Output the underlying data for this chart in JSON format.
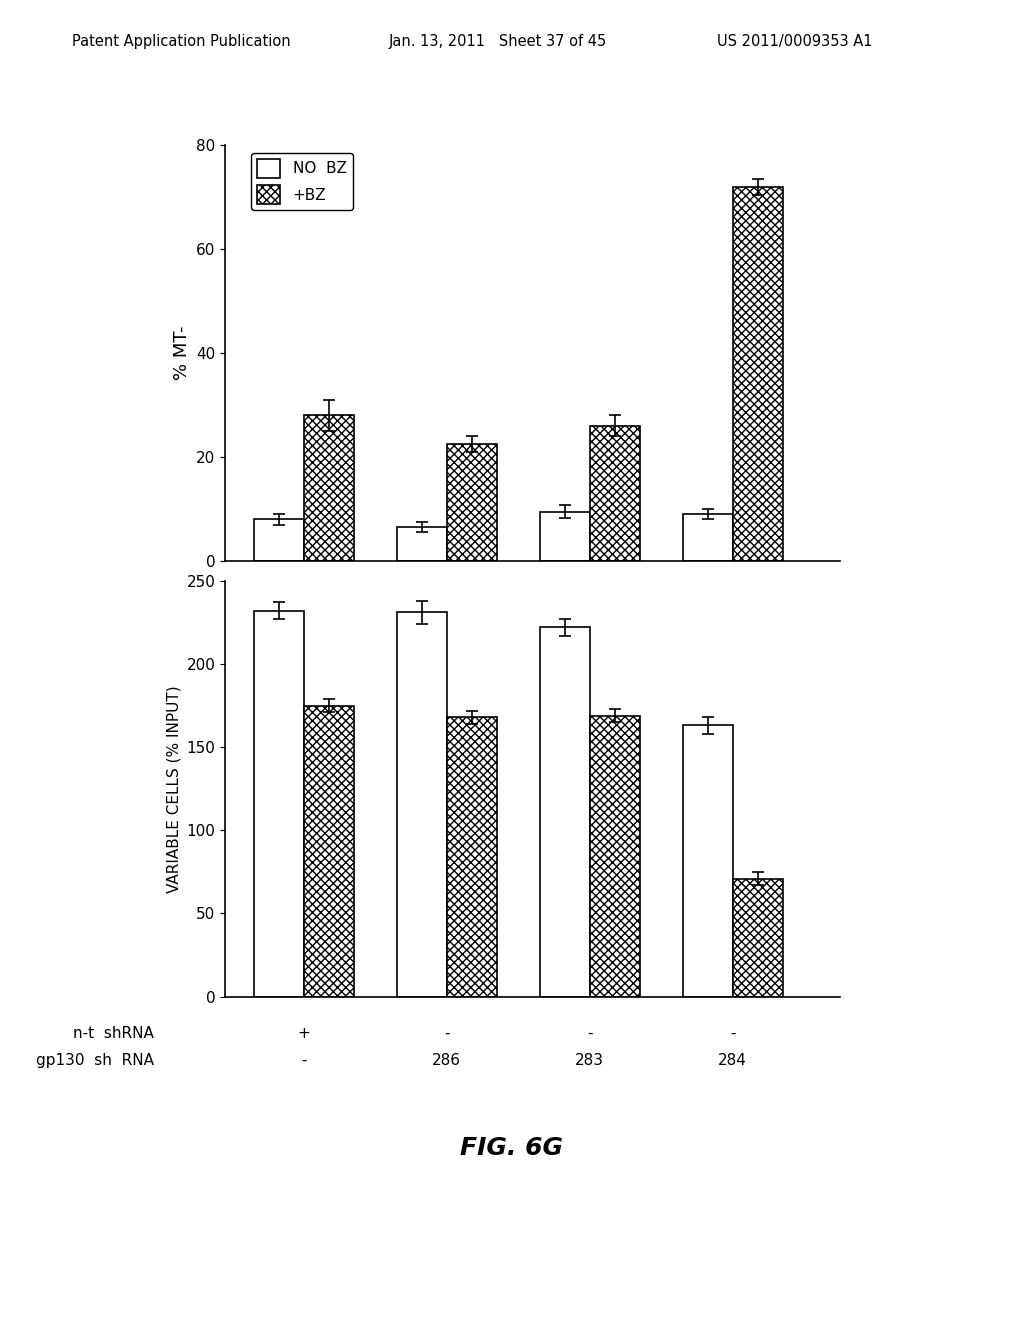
{
  "top_chart": {
    "ylabel": "% MT-",
    "ylim": [
      0,
      80
    ],
    "yticks": [
      0,
      20,
      40,
      60,
      80
    ],
    "no_bz": [
      8.0,
      6.5,
      9.5,
      9.0
    ],
    "bz": [
      28.0,
      22.5,
      26.0,
      72.0
    ],
    "no_bz_err": [
      1.0,
      1.0,
      1.2,
      1.0
    ],
    "bz_err": [
      3.0,
      1.5,
      2.0,
      1.5
    ],
    "legend_no_bz": "NO  BZ",
    "legend_bz": "+BZ"
  },
  "bottom_chart": {
    "ylabel": "VARIABLE CELLS (% INPUT)",
    "ylim": [
      0,
      250
    ],
    "yticks": [
      0,
      50,
      100,
      150,
      200,
      250
    ],
    "no_bz": [
      232.0,
      231.0,
      222.0,
      163.0
    ],
    "bz": [
      175.0,
      168.0,
      169.0,
      71.0
    ],
    "no_bz_err": [
      5.0,
      7.0,
      5.0,
      5.0
    ],
    "bz_err": [
      4.0,
      4.0,
      4.0,
      4.0
    ]
  },
  "fig_label": "FIG. 6G",
  "bar_width": 0.35,
  "group_positions": [
    1,
    2,
    3,
    4
  ],
  "bg_color": "#ffffff",
  "bar_color_white": "#ffffff",
  "bar_edge_color": "#000000",
  "hatch_pattern": "xxxx",
  "header_left": "Patent Application Publication",
  "header_mid": "Jan. 13, 2011   Sheet 37 of 45",
  "header_right": "US 2011/0009353 A1"
}
